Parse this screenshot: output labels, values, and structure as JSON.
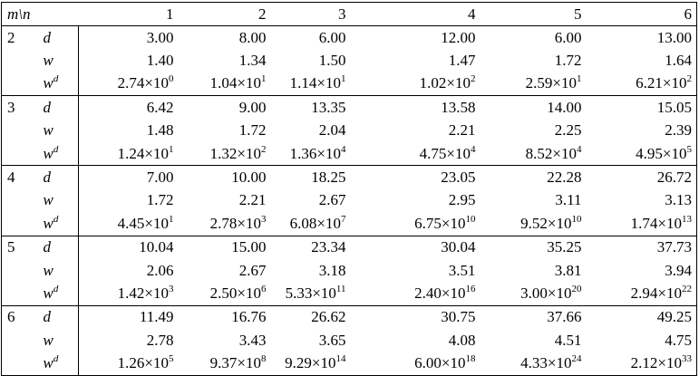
{
  "table": {
    "corner": "m\\n",
    "columns": [
      "1",
      "2",
      "3",
      "4",
      "5",
      "6"
    ],
    "groups": [
      {
        "m": "2",
        "rows": [
          {
            "label": "d",
            "cells": [
              "3.00",
              "8.00",
              "6.00",
              "12.00",
              "6.00",
              "13.00"
            ]
          },
          {
            "label": "w",
            "cells": [
              "1.40",
              "1.34",
              "1.50",
              "1.47",
              "1.72",
              "1.64"
            ]
          },
          {
            "label": "w",
            "label_sup": "d",
            "cells": [
              {
                "base": "2.74×10",
                "exp": "0"
              },
              {
                "base": "1.04×10",
                "exp": "1"
              },
              {
                "base": "1.14×10",
                "exp": "1"
              },
              {
                "base": "1.02×10",
                "exp": "2"
              },
              {
                "base": "2.59×10",
                "exp": "1"
              },
              {
                "base": "6.21×10",
                "exp": "2"
              }
            ]
          }
        ]
      },
      {
        "m": "3",
        "rows": [
          {
            "label": "d",
            "cells": [
              "6.42",
              "9.00",
              "13.35",
              "13.58",
              "14.00",
              "15.05"
            ]
          },
          {
            "label": "w",
            "cells": [
              "1.48",
              "1.72",
              "2.04",
              "2.21",
              "2.25",
              "2.39"
            ]
          },
          {
            "label": "w",
            "label_sup": "d",
            "cells": [
              {
                "base": "1.24×10",
                "exp": "1"
              },
              {
                "base": "1.32×10",
                "exp": "2"
              },
              {
                "base": "1.36×10",
                "exp": "4"
              },
              {
                "base": "4.75×10",
                "exp": "4"
              },
              {
                "base": "8.52×10",
                "exp": "4"
              },
              {
                "base": "4.95×10",
                "exp": "5"
              }
            ]
          }
        ]
      },
      {
        "m": "4",
        "rows": [
          {
            "label": "d",
            "cells": [
              "7.00",
              "10.00",
              "18.25",
              "23.05",
              "22.28",
              "26.72"
            ]
          },
          {
            "label": "w",
            "cells": [
              "1.72",
              "2.21",
              "2.67",
              "2.95",
              "3.11",
              "3.13"
            ]
          },
          {
            "label": "w",
            "label_sup": "d",
            "cells": [
              {
                "base": "4.45×10",
                "exp": "1"
              },
              {
                "base": "2.78×10",
                "exp": "3"
              },
              {
                "base": "6.08×10",
                "exp": "7"
              },
              {
                "base": "6.75×10",
                "exp": "10"
              },
              {
                "base": "9.52×10",
                "exp": "10"
              },
              {
                "base": "1.74×10",
                "exp": "13"
              }
            ]
          }
        ]
      },
      {
        "m": "5",
        "rows": [
          {
            "label": "d",
            "cells": [
              "10.04",
              "15.00",
              "23.34",
              "30.04",
              "35.25",
              "37.73"
            ]
          },
          {
            "label": "w",
            "cells": [
              "2.06",
              "2.67",
              "3.18",
              "3.51",
              "3.81",
              "3.94"
            ]
          },
          {
            "label": "w",
            "label_sup": "d",
            "cells": [
              {
                "base": "1.42×10",
                "exp": "3"
              },
              {
                "base": "2.50×10",
                "exp": "6"
              },
              {
                "base": "5.33×10",
                "exp": "11"
              },
              {
                "base": "2.40×10",
                "exp": "16"
              },
              {
                "base": "3.00×10",
                "exp": "20"
              },
              {
                "base": "2.94×10",
                "exp": "22"
              }
            ]
          }
        ]
      },
      {
        "m": "6",
        "rows": [
          {
            "label": "d",
            "cells": [
              "11.49",
              "16.76",
              "26.62",
              "30.75",
              "37.66",
              "49.25"
            ]
          },
          {
            "label": "w",
            "cells": [
              "2.78",
              "3.43",
              "3.65",
              "4.08",
              "4.51",
              "4.75"
            ]
          },
          {
            "label": "w",
            "label_sup": "d",
            "cells": [
              {
                "base": "1.26×10",
                "exp": "5"
              },
              {
                "base": "9.37×10",
                "exp": "8"
              },
              {
                "base": "9.29×10",
                "exp": "14"
              },
              {
                "base": "6.00×10",
                "exp": "18"
              },
              {
                "base": "4.33×10",
                "exp": "24"
              },
              {
                "base": "2.12×10",
                "exp": "33"
              }
            ]
          }
        ]
      }
    ]
  }
}
